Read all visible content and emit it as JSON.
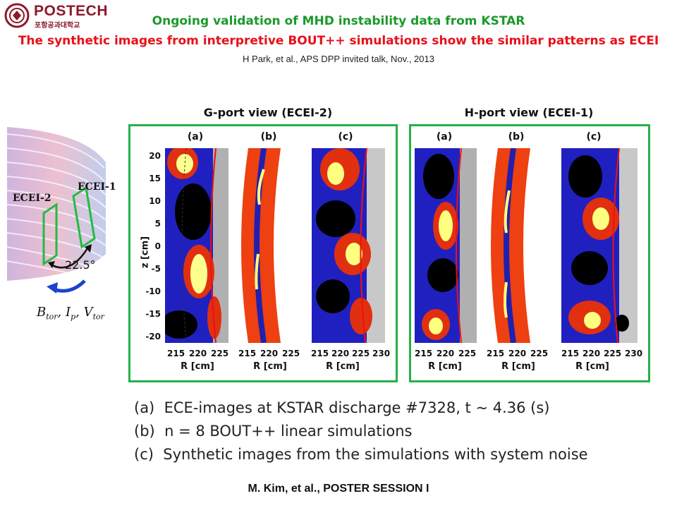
{
  "header": {
    "logo_name": "POSTECH",
    "logo_sub": "포항공과대학교",
    "title_green": "Ongoing validation of MHD instability data from KSTAR",
    "title_red": "The synthetic images from interpretive BOUT++ simulations show the similar patterns as ECEI",
    "citation": "H Park, et al., APS DPP invited talk, Nov., 2013"
  },
  "diagram": {
    "ecei2_label": "ECEI-2",
    "ecei1_label": "ECEI-1",
    "angle_label": "22.5°",
    "direction_label": "B_tor, I_p, V_tor",
    "direction_parts": [
      {
        "base": "B",
        "sub": "tor"
      },
      {
        "base": "I",
        "sub": "p"
      },
      {
        "base": "V",
        "sub": "tor"
      }
    ]
  },
  "views": [
    {
      "title": "G-port view (ECEI-2)",
      "panels": [
        {
          "label": "(a)",
          "xticks": [
            "215",
            "220",
            "225"
          ],
          "xlabel": "R [cm]"
        },
        {
          "label": "(b)",
          "xticks": [
            "215",
            "220",
            "225"
          ],
          "xlabel": "R [cm]"
        },
        {
          "label": "(c)",
          "xticks": [
            "215",
            "220",
            "225",
            "230"
          ],
          "xlabel": "R [cm]"
        }
      ]
    },
    {
      "title": "H-port view (ECEI-1)",
      "panels": [
        {
          "label": "(a)",
          "xticks": [
            "215",
            "220",
            "225"
          ],
          "xlabel": "R [cm]"
        },
        {
          "label": "(b)",
          "xticks": [
            "215",
            "220",
            "225"
          ],
          "xlabel": "R [cm]"
        },
        {
          "label": "(c)",
          "xticks": [
            "215",
            "220",
            "225",
            "230"
          ],
          "xlabel": "R [cm]"
        }
      ]
    }
  ],
  "yaxis": {
    "label": "z [cm]",
    "ticks": [
      "20",
      "15",
      "10",
      "5",
      "0",
      "-5",
      "-10",
      "-15",
      "-20"
    ]
  },
  "legend": [
    {
      "marker": "(a)",
      "text": "ECE-images at KSTAR discharge #7328, t ~ 4.36 (s)"
    },
    {
      "marker": "(b)",
      "text": "n = 8 BOUT++ linear simulations"
    },
    {
      "marker": "(c)",
      "text": "Synthetic images from the simulations with system noise"
    }
  ],
  "footer": "M. Kim, et al., POSTER SESSION I",
  "colors": {
    "green_title": "#1a9a2a",
    "red_title": "#e8101a",
    "box_green": "#27b04a",
    "logo": "#8a1a2a"
  }
}
